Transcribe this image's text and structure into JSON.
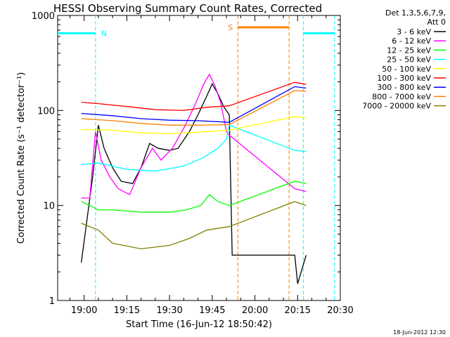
{
  "chart_data": {
    "type": "line",
    "title": "HESSI Observing Summary Count Rates, Corrected",
    "xlabel": "Start Time (16-Jun-12 18:50:42)",
    "ylabel": "Corrected Count Rate (s⁻¹ detector⁻¹)",
    "yscale": "log",
    "ylim": [
      1,
      1000
    ],
    "xlim": [
      "18:50:42",
      "20:30:00"
    ],
    "x_ticks": [
      "19:00",
      "19:15",
      "19:30",
      "19:45",
      "20:00",
      "20:15",
      "20:30"
    ],
    "y_ticks": [
      "1",
      "10",
      "100",
      "1000"
    ],
    "legend_header": [
      "Det 1,3,5,6,7,9,",
      "Att 0"
    ],
    "legend_position": "right",
    "footer": "18-Jun-2012 12:30",
    "series": [
      {
        "name": "3 - 6 keV",
        "color": "#000000",
        "points": [
          [
            "18:59",
            2.5
          ],
          [
            "19:03",
            20
          ],
          [
            "19:05",
            70
          ],
          [
            "19:07",
            40
          ],
          [
            "19:10",
            25
          ],
          [
            "19:13",
            18
          ],
          [
            "19:17",
            17
          ],
          [
            "19:20",
            25
          ],
          [
            "19:23",
            45
          ],
          [
            "19:26",
            40
          ],
          [
            "19:30",
            38
          ],
          [
            "19:33",
            40
          ],
          [
            "19:37",
            60
          ],
          [
            "19:40",
            90
          ],
          [
            "19:43",
            140
          ],
          [
            "19:45",
            190
          ],
          [
            "19:47",
            150
          ],
          [
            "19:49",
            110
          ],
          [
            "19:51",
            90
          ],
          [
            "19:52",
            3
          ],
          [
            "20:14",
            3
          ],
          [
            "20:15",
            1.5
          ],
          [
            "20:18",
            3
          ]
        ]
      },
      {
        "name": "6 - 12 keV",
        "color": "#ff00ff",
        "points": [
          [
            "18:59",
            12
          ],
          [
            "19:02",
            12
          ],
          [
            "19:04",
            60
          ],
          [
            "19:06",
            30
          ],
          [
            "19:09",
            20
          ],
          [
            "19:12",
            15
          ],
          [
            "19:16",
            13
          ],
          [
            "19:20",
            25
          ],
          [
            "19:24",
            40
          ],
          [
            "19:27",
            30
          ],
          [
            "19:31",
            40
          ],
          [
            "19:35",
            65
          ],
          [
            "19:39",
            115
          ],
          [
            "19:42",
            190
          ],
          [
            "19:44",
            240
          ],
          [
            "19:46",
            180
          ],
          [
            "19:48",
            120
          ],
          [
            "19:50",
            60
          ],
          [
            "19:51",
            55
          ],
          [
            "20:14",
            15
          ],
          [
            "20:18",
            14
          ]
        ]
      },
      {
        "name": "12 - 25 keV",
        "color": "#00ff00",
        "points": [
          [
            "18:59",
            11
          ],
          [
            "19:05",
            9
          ],
          [
            "19:10",
            9
          ],
          [
            "19:20",
            8.5
          ],
          [
            "19:30",
            8.5
          ],
          [
            "19:36",
            9
          ],
          [
            "19:41",
            10
          ],
          [
            "19:44",
            13
          ],
          [
            "19:47",
            11
          ],
          [
            "19:51",
            10
          ],
          [
            "20:14",
            18
          ],
          [
            "20:18",
            17
          ]
        ]
      },
      {
        "name": "25 - 50 keV",
        "color": "#00ffff",
        "points": [
          [
            "18:59",
            27
          ],
          [
            "19:05",
            28
          ],
          [
            "19:15",
            24
          ],
          [
            "19:25",
            23
          ],
          [
            "19:35",
            26
          ],
          [
            "19:42",
            32
          ],
          [
            "19:47",
            40
          ],
          [
            "19:50",
            50
          ],
          [
            "19:51",
            70
          ],
          [
            "20:14",
            38
          ],
          [
            "20:18",
            37
          ]
        ]
      },
      {
        "name": "50 - 100 keV",
        "color": "#ffff00",
        "points": [
          [
            "18:59",
            63
          ],
          [
            "19:10",
            62
          ],
          [
            "19:20",
            58
          ],
          [
            "19:30",
            57
          ],
          [
            "19:40",
            59
          ],
          [
            "19:51",
            62
          ],
          [
            "20:14",
            86
          ],
          [
            "20:18",
            84
          ]
        ]
      },
      {
        "name": "100 - 300 keV",
        "color": "#ff0000",
        "points": [
          [
            "18:59",
            122
          ],
          [
            "19:05",
            118
          ],
          [
            "19:15",
            110
          ],
          [
            "19:25",
            102
          ],
          [
            "19:35",
            100
          ],
          [
            "19:43",
            108
          ],
          [
            "19:51",
            112
          ],
          [
            "20:14",
            198
          ],
          [
            "20:18",
            188
          ]
        ]
      },
      {
        "name": "300 - 800 keV",
        "color": "#0000ff",
        "points": [
          [
            "18:59",
            93
          ],
          [
            "19:10",
            88
          ],
          [
            "19:20",
            82
          ],
          [
            "19:30",
            79
          ],
          [
            "19:40",
            78
          ],
          [
            "19:51",
            75
          ],
          [
            "20:14",
            178
          ],
          [
            "20:18",
            172
          ]
        ]
      },
      {
        "name": "800 - 7000 keV",
        "color": "#ff8000",
        "points": [
          [
            "18:59",
            82
          ],
          [
            "19:10",
            78
          ],
          [
            "19:20",
            73
          ],
          [
            "19:30",
            70
          ],
          [
            "19:40",
            70
          ],
          [
            "19:51",
            71
          ],
          [
            "20:14",
            162
          ],
          [
            "20:18",
            160
          ]
        ]
      },
      {
        "name": "7000 - 20000 keV",
        "color": "#808000",
        "points": [
          [
            "18:59",
            6.5
          ],
          [
            "19:05",
            5.5
          ],
          [
            "19:10",
            4
          ],
          [
            "19:20",
            3.5
          ],
          [
            "19:30",
            3.8
          ],
          [
            "19:37",
            4.5
          ],
          [
            "19:43",
            5.5
          ],
          [
            "19:51",
            6
          ],
          [
            "20:14",
            11
          ],
          [
            "20:18",
            10
          ]
        ]
      }
    ],
    "annotations": [
      {
        "label": "N",
        "color": "#00ffff",
        "x_range": [
          "18:50:42",
          "19:04"
        ],
        "level": 650
      },
      {
        "label": "S",
        "color": "#ff8000",
        "x_range": [
          "19:54",
          "20:12"
        ],
        "level": 750
      },
      {
        "label": "",
        "color": "#00ffff",
        "x_range": [
          "20:17",
          "20:28"
        ],
        "level": 650
      }
    ],
    "grid": false
  }
}
